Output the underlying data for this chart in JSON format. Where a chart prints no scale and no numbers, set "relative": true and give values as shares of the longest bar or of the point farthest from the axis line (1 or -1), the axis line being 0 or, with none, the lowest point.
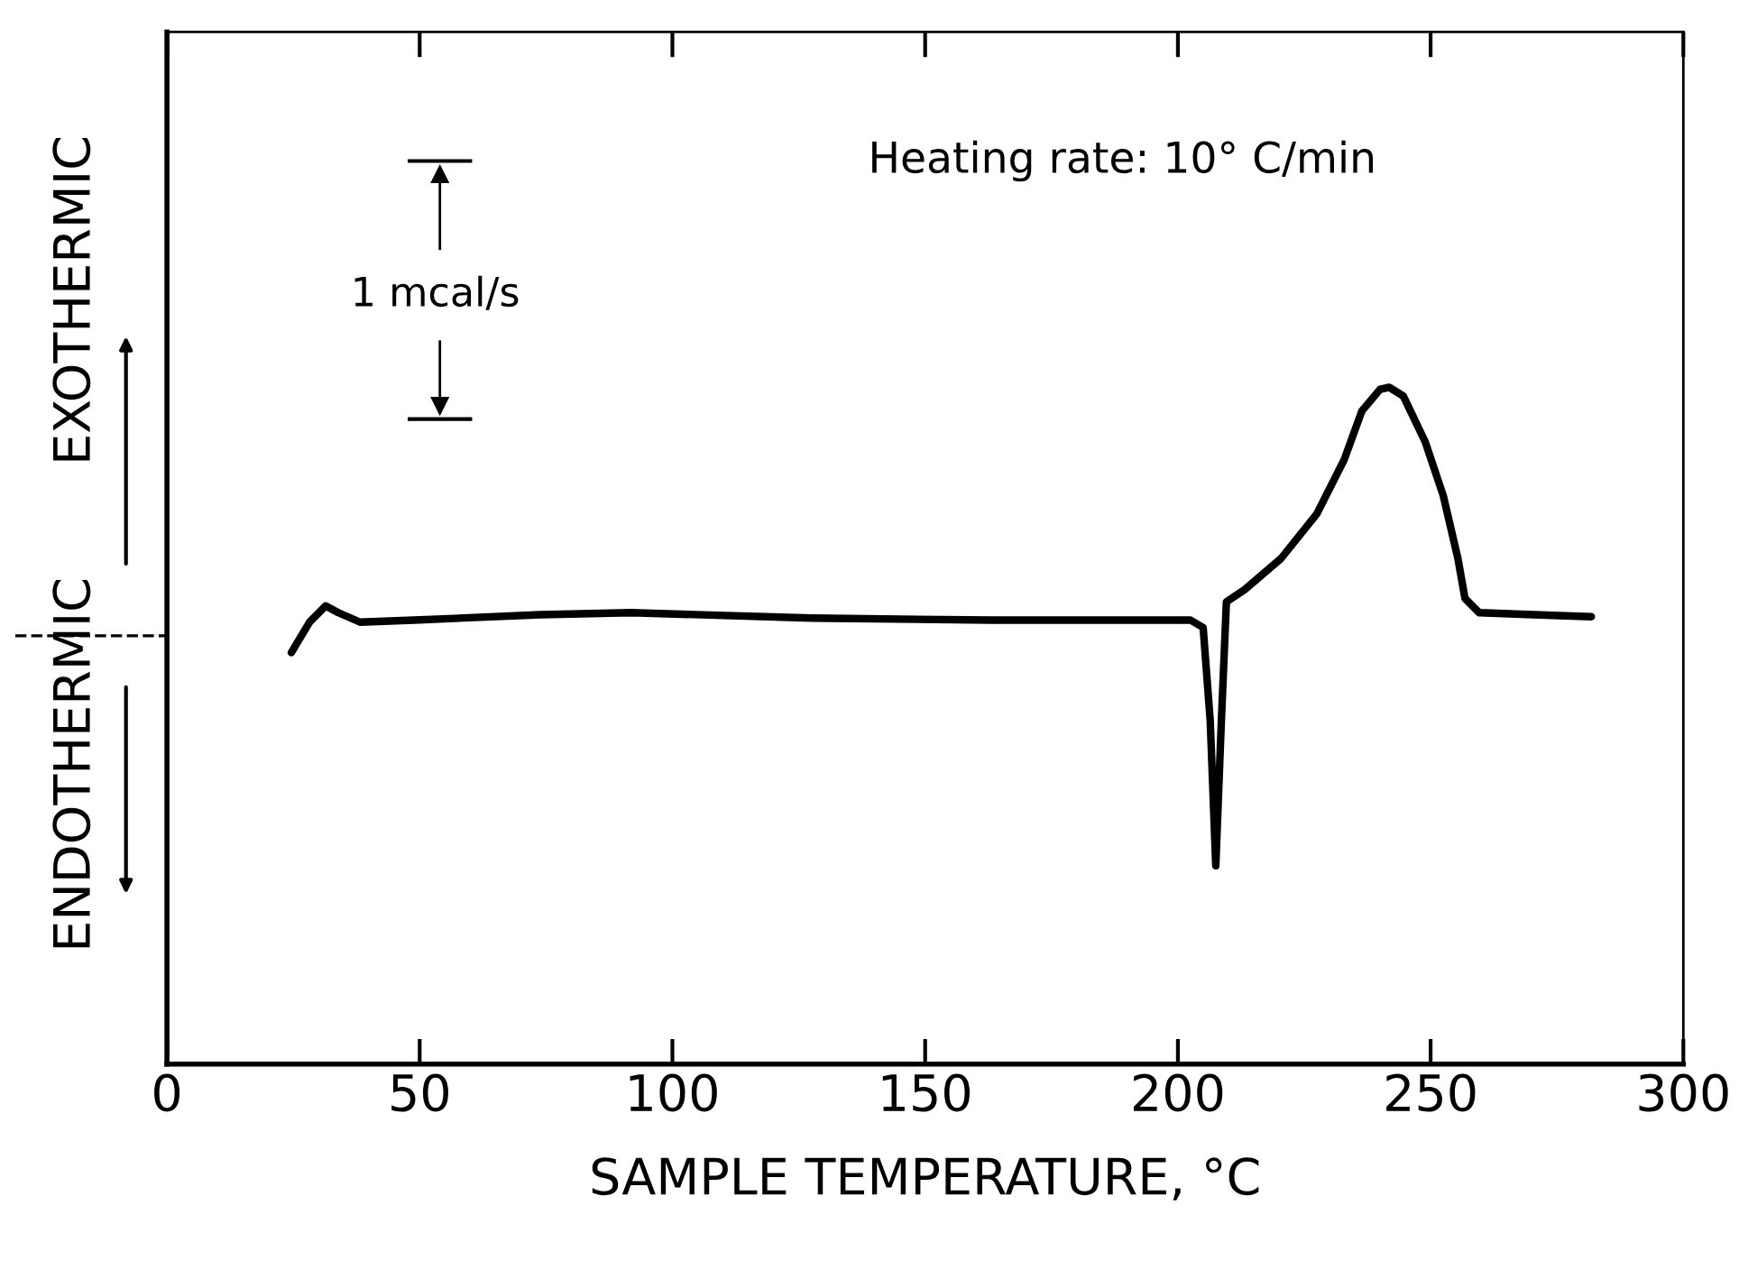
{
  "chart_data": {
    "type": "line",
    "relative": true,
    "xlabel": "SAMPLE TEMPERATURE, °C",
    "x": [
      24.6,
      28.2,
      31.4,
      33.9,
      38.2,
      48.9,
      73.9,
      91.8,
      127.5,
      163.2,
      202.5,
      205,
      206.4,
      207.5,
      208.6,
      209.6,
      213.2,
      220.4,
      227.5,
      232.9,
      236.4,
      240,
      241.8,
      244.6,
      248.9,
      252.5,
      255.4,
      256.8,
      259.6,
      270.4,
      281.8
    ],
    "series": [
      {
        "color": "#000000",
        "values": [
          0.608,
          0.653,
          0.677,
          0.667,
          0.653,
          0.656,
          0.664,
          0.667,
          0.659,
          0.656,
          0.656,
          0.645,
          0.507,
          0.293,
          0.507,
          0.683,
          0.701,
          0.747,
          0.813,
          0.893,
          0.965,
          0.997,
          1.0,
          0.987,
          0.92,
          0.84,
          0.747,
          0.688,
          0.667,
          0.664,
          0.661
        ]
      }
    ],
    "xlim": [
      0,
      300
    ],
    "xticks": [
      0,
      50,
      100,
      150,
      200,
      250,
      300
    ],
    "annotations": [
      "Heating rate: 10° C/min",
      "1 mcal/s",
      "EXOTHERMIC",
      "ENDOTHERMIC"
    ],
    "grid": false,
    "legend": false,
    "marker": "none",
    "line_style": "solid"
  }
}
